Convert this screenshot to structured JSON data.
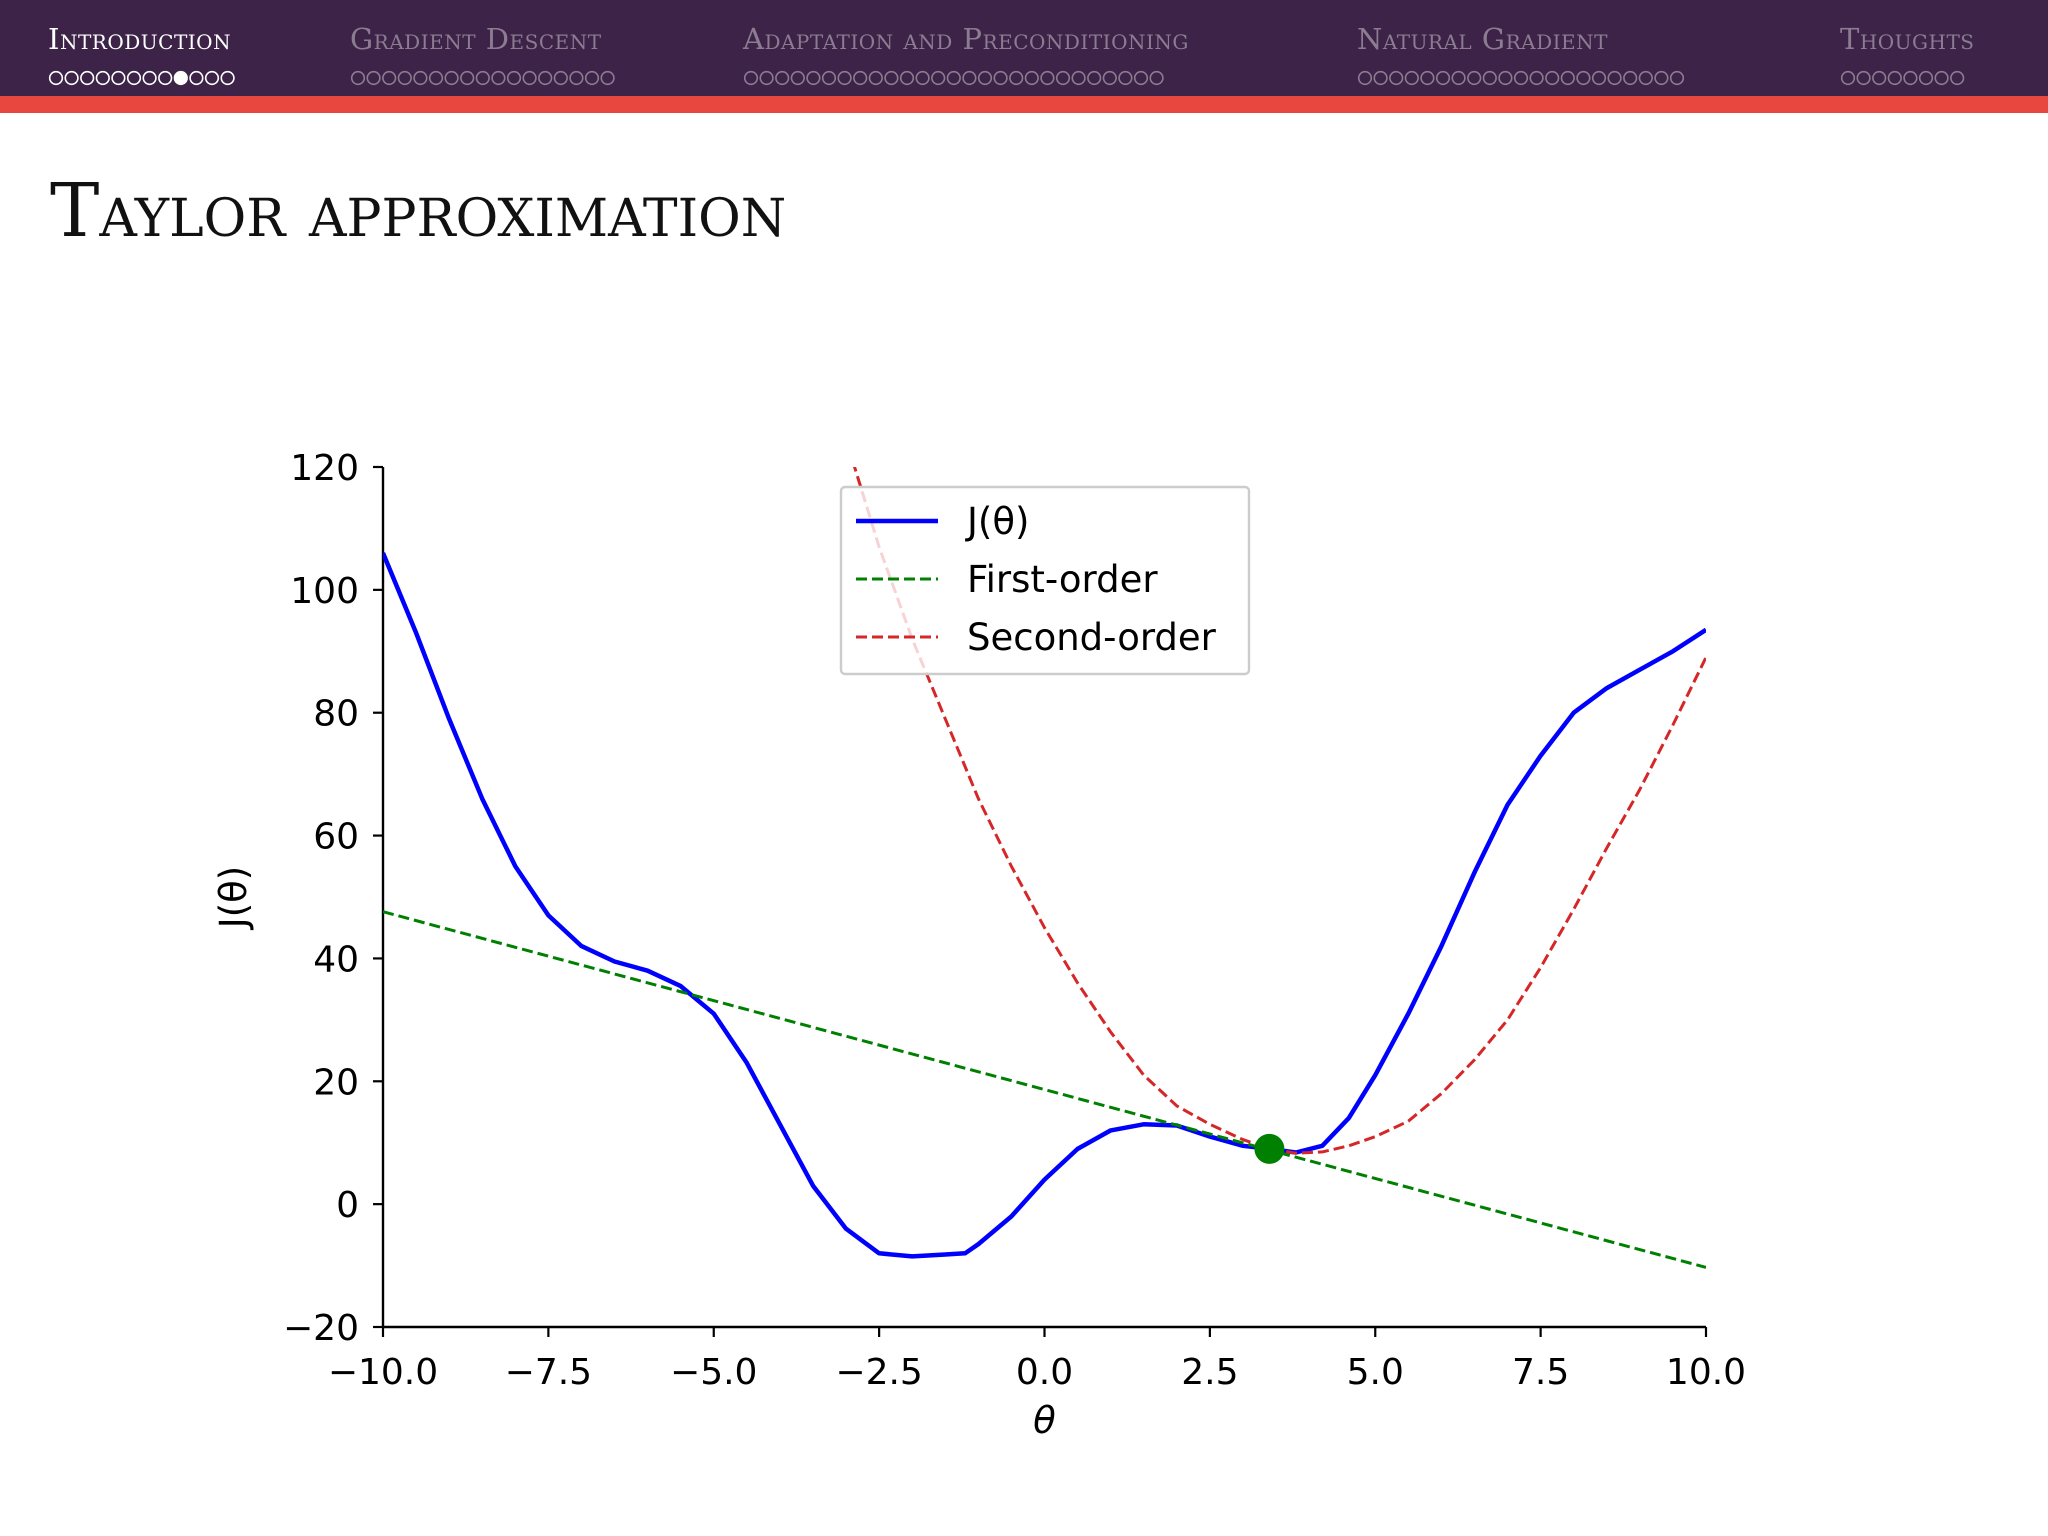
{
  "navbar": {
    "sections": [
      {
        "label": "Introduction",
        "slides": 12,
        "current": 8,
        "active": true
      },
      {
        "label": "Gradient Descent",
        "slides": 17,
        "current": null,
        "active": false
      },
      {
        "label": "Adaptation and Preconditioning",
        "slides": 27,
        "current": null,
        "active": false
      },
      {
        "label": "Natural Gradient",
        "slides": 21,
        "current": null,
        "active": false
      },
      {
        "label": "Thoughts",
        "slides": 8,
        "current": null,
        "active": false
      }
    ],
    "colors": {
      "background": "#3c2347",
      "accent_bar": "#e8473f",
      "active_text": "#ffffff",
      "inactive_text": "#8b7c91"
    }
  },
  "slide": {
    "title": "Taylor approximation"
  },
  "chart_data": {
    "type": "line",
    "xlabel": "θ",
    "ylabel": "J(θ)",
    "xlim": [
      -10.0,
      10.0
    ],
    "ylim": [
      -20,
      120
    ],
    "xticks": [
      -10.0,
      -7.5,
      -5.0,
      -2.5,
      0.0,
      2.5,
      5.0,
      7.5,
      10.0
    ],
    "xtick_labels": [
      "−10.0",
      "−7.5",
      "−5.0",
      "−2.5",
      "0.0",
      "2.5",
      "5.0",
      "7.5",
      "10.0"
    ],
    "yticks": [
      -20,
      0,
      20,
      40,
      60,
      80,
      100,
      120
    ],
    "ytick_labels": [
      "−20",
      "0",
      "20",
      "40",
      "60",
      "80",
      "100",
      "120"
    ],
    "grid": false,
    "legend": "upper-center",
    "expansion_point": {
      "x": 3.4,
      "y": 9.0,
      "color": "#008000"
    },
    "series": [
      {
        "name": "J(θ)",
        "style": "solid",
        "color": "#0000ff",
        "x": [
          -10.0,
          -9.5,
          -9.0,
          -8.5,
          -8.0,
          -7.5,
          -7.0,
          -6.5,
          -6.0,
          -5.5,
          -5.0,
          -4.5,
          -4.0,
          -3.5,
          -3.0,
          -2.5,
          -2.0,
          -1.5,
          -1.2,
          -1.0,
          -0.5,
          0.0,
          0.5,
          1.0,
          1.5,
          2.0,
          2.5,
          3.0,
          3.4,
          3.8,
          4.2,
          4.6,
          5.0,
          5.5,
          6.0,
          6.5,
          7.0,
          7.5,
          8.0,
          8.5,
          9.0,
          9.5,
          10.0
        ],
        "y": [
          106,
          93,
          79,
          66,
          55,
          47,
          42,
          39.5,
          38,
          35.5,
          31,
          23,
          13,
          3,
          -4,
          -8,
          -8.5,
          -8.2,
          -8,
          -6.5,
          -2,
          4,
          9,
          12,
          13,
          12.8,
          11,
          9.5,
          9.0,
          8.4,
          9.5,
          14,
          21,
          31,
          42,
          54,
          65,
          73,
          80,
          84,
          87,
          90,
          93.5
        ]
      },
      {
        "name": "First-order",
        "style": "dashed",
        "color": "#008000",
        "x": [
          -10.0,
          10.0
        ],
        "y": [
          47.6,
          -10.3
        ]
      },
      {
        "name": "Second-order",
        "style": "dashed",
        "color": "#d62728",
        "x": [
          -2.9,
          -2.5,
          -2.0,
          -1.5,
          -1.0,
          -0.5,
          0.0,
          0.5,
          1.0,
          1.5,
          2.0,
          2.5,
          3.0,
          3.4,
          3.8,
          4.2,
          4.6,
          5.0,
          5.5,
          6.0,
          6.5,
          7.0,
          7.5,
          8.0,
          8.5,
          9.0,
          9.5,
          10.0
        ],
        "y": [
          121,
          107,
          92,
          79,
          66,
          55,
          45,
          36,
          28,
          21,
          16,
          13,
          10.5,
          9.0,
          8.3,
          8.5,
          9.5,
          11,
          13.5,
          18,
          23.5,
          30,
          38.5,
          48,
          58,
          67.5,
          78,
          89
        ]
      }
    ]
  }
}
